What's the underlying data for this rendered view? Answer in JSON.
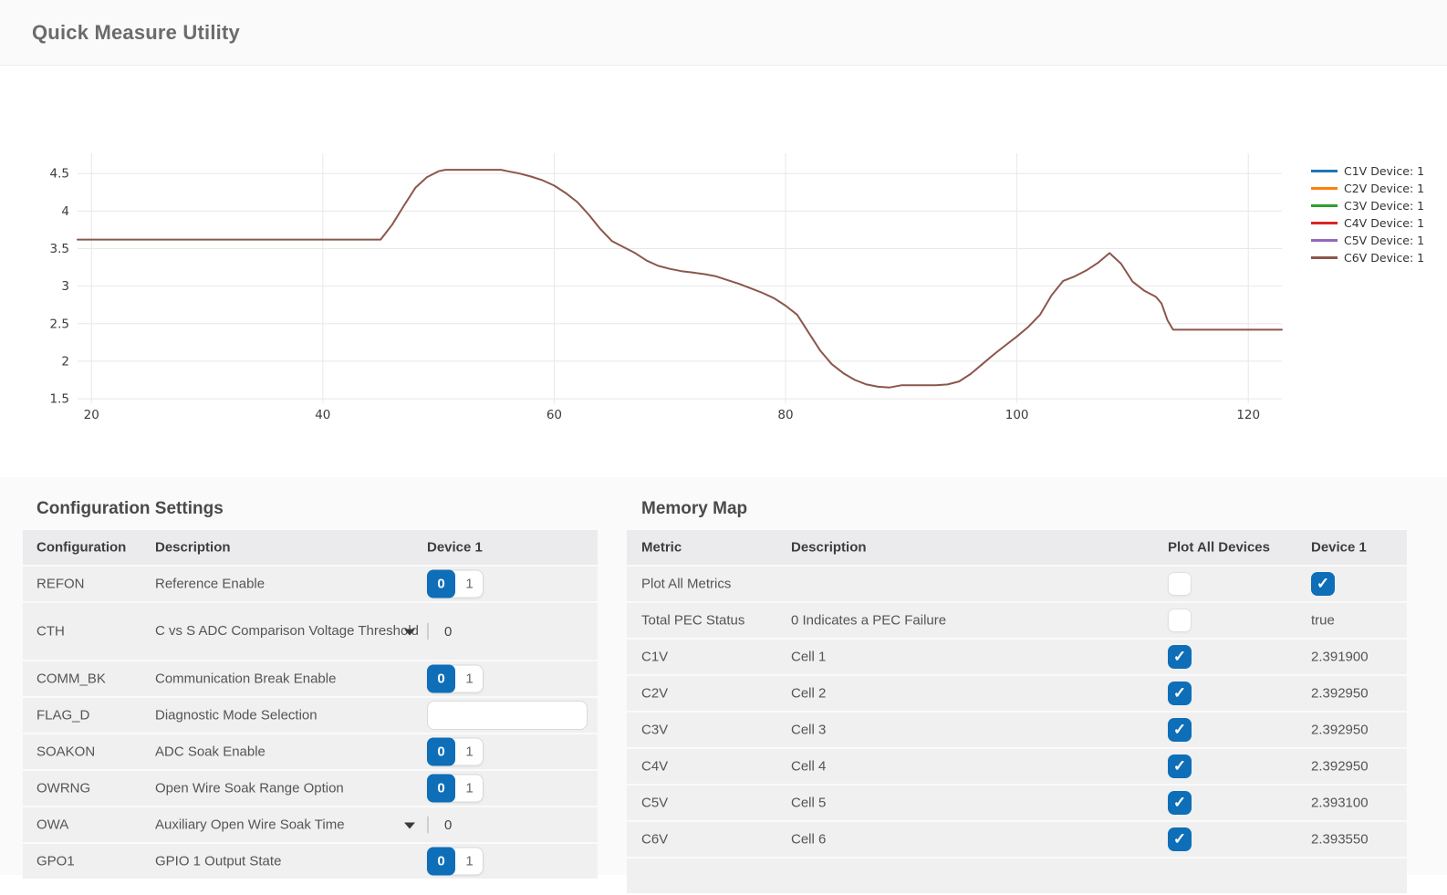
{
  "header": {
    "title": "Quick Measure Utility"
  },
  "chart_data": {
    "type": "line",
    "title": "",
    "xlabel": "",
    "ylabel": "",
    "xlim": [
      18.8,
      122.9
    ],
    "ylim": [
      1.44,
      4.77
    ],
    "x_ticks": [
      20,
      40,
      60,
      80,
      100,
      120
    ],
    "y_ticks": [
      1.5,
      2,
      2.5,
      3,
      3.5,
      4,
      4.5
    ],
    "grid": true,
    "legend_position": "right",
    "series": [
      {
        "name": "C1V Device: 1",
        "color": "#1f77b4"
      },
      {
        "name": "C2V Device: 1",
        "color": "#ff7f0e"
      },
      {
        "name": "C3V Device: 1",
        "color": "#2ca02c"
      },
      {
        "name": "C4V Device: 1",
        "color": "#d62728"
      },
      {
        "name": "C5V Device: 1",
        "color": "#9467bd"
      },
      {
        "name": "C6V Device: 1",
        "color": "#8c564b"
      }
    ],
    "overlap_note": "All six cell-voltage traces overlap almost exactly; the visible line is the last-drawn C6V series",
    "visible_line": {
      "color": "#8c564b",
      "points": [
        [
          18.8,
          3.62
        ],
        [
          45,
          3.62
        ],
        [
          46,
          3.82
        ],
        [
          47,
          4.07
        ],
        [
          48,
          4.31
        ],
        [
          49,
          4.45
        ],
        [
          50,
          4.53
        ],
        [
          50.6,
          4.55
        ],
        [
          55.4,
          4.55
        ],
        [
          56,
          4.53
        ],
        [
          57,
          4.5
        ],
        [
          58,
          4.46
        ],
        [
          59,
          4.41
        ],
        [
          60,
          4.34
        ],
        [
          61,
          4.24
        ],
        [
          62,
          4.12
        ],
        [
          63,
          3.95
        ],
        [
          64,
          3.76
        ],
        [
          65,
          3.6
        ],
        [
          66,
          3.52
        ],
        [
          67,
          3.44
        ],
        [
          68,
          3.34
        ],
        [
          69,
          3.27
        ],
        [
          70,
          3.23
        ],
        [
          71,
          3.2
        ],
        [
          72,
          3.18
        ],
        [
          73,
          3.16
        ],
        [
          74,
          3.13
        ],
        [
          75,
          3.08
        ],
        [
          76,
          3.03
        ],
        [
          77,
          2.97
        ],
        [
          78,
          2.91
        ],
        [
          79,
          2.84
        ],
        [
          80,
          2.74
        ],
        [
          81,
          2.62
        ],
        [
          82,
          2.38
        ],
        [
          83,
          2.14
        ],
        [
          84,
          1.96
        ],
        [
          85,
          1.84
        ],
        [
          86,
          1.75
        ],
        [
          87,
          1.69
        ],
        [
          88,
          1.66
        ],
        [
          89,
          1.65
        ],
        [
          90,
          1.68
        ],
        [
          93,
          1.68
        ],
        [
          94,
          1.69
        ],
        [
          95,
          1.73
        ],
        [
          96,
          1.83
        ],
        [
          97,
          1.96
        ],
        [
          98,
          2.09
        ],
        [
          99,
          2.21
        ],
        [
          100,
          2.33
        ],
        [
          101,
          2.46
        ],
        [
          102,
          2.62
        ],
        [
          103,
          2.88
        ],
        [
          104,
          3.07
        ],
        [
          105,
          3.13
        ],
        [
          106,
          3.21
        ],
        [
          107,
          3.31
        ],
        [
          108,
          3.44
        ],
        [
          109,
          3.3
        ],
        [
          110,
          3.06
        ],
        [
          111,
          2.94
        ],
        [
          112,
          2.86
        ],
        [
          112.5,
          2.77
        ],
        [
          113,
          2.55
        ],
        [
          113.5,
          2.42
        ],
        [
          122.9,
          2.42
        ]
      ]
    }
  },
  "config_panel": {
    "title": "Configuration Settings",
    "columns": [
      "Configuration",
      "Description",
      "Device 1"
    ],
    "rows": [
      {
        "name": "REFON",
        "description": "Reference Enable",
        "control": "toggle",
        "value": "0",
        "options": [
          "0",
          "1"
        ]
      },
      {
        "name": "CTH",
        "description": "C vs S ADC Comparison Voltage Threshold",
        "control": "dropdown",
        "value": "0"
      },
      {
        "name": "COMM_BK",
        "description": "Communication Break Enable",
        "control": "toggle",
        "value": "0",
        "options": [
          "0",
          "1"
        ]
      },
      {
        "name": "FLAG_D",
        "description": "Diagnostic Mode Selection",
        "control": "input",
        "value": "",
        "placeholder": ""
      },
      {
        "name": "SOAKON",
        "description": "ADC Soak Enable",
        "control": "toggle",
        "value": "0",
        "options": [
          "0",
          "1"
        ]
      },
      {
        "name": "OWRNG",
        "description": "Open Wire Soak Range Option",
        "control": "toggle",
        "value": "0",
        "options": [
          "0",
          "1"
        ]
      },
      {
        "name": "OWA",
        "description": "Auxiliary Open Wire Soak Time",
        "control": "dropdown",
        "value": "0"
      },
      {
        "name": "GPO1",
        "description": "GPIO 1 Output State",
        "control": "toggle",
        "value": "0",
        "options": [
          "0",
          "1"
        ]
      }
    ]
  },
  "memory_panel": {
    "title": "Memory Map",
    "columns": [
      "Metric",
      "Description",
      "Plot All Devices",
      "Device 1"
    ],
    "rows": [
      {
        "metric": "Plot All Metrics",
        "description": "",
        "plot_all_checked": false,
        "device1_checked": true,
        "device1_value": ""
      },
      {
        "metric": "Total PEC Status",
        "description": "0 Indicates a PEC Failure",
        "plot_all_checked": false,
        "device1_value": "true"
      },
      {
        "metric": "C1V",
        "description": "Cell 1",
        "plot_all_checked": true,
        "device1_value": "2.391900"
      },
      {
        "metric": "C2V",
        "description": "Cell 2",
        "plot_all_checked": true,
        "device1_value": "2.392950"
      },
      {
        "metric": "C3V",
        "description": "Cell 3",
        "plot_all_checked": true,
        "device1_value": "2.392950"
      },
      {
        "metric": "C4V",
        "description": "Cell 4",
        "plot_all_checked": true,
        "device1_value": "2.392950"
      },
      {
        "metric": "C5V",
        "description": "Cell 5",
        "plot_all_checked": true,
        "device1_value": "2.393100"
      },
      {
        "metric": "C6V",
        "description": "Cell 6",
        "plot_all_checked": true,
        "device1_value": "2.393550"
      }
    ]
  },
  "ui_colors": {
    "accent_blue": "#0e6eb8",
    "line_brown": "#8c564b",
    "row_gray": "#f0f0f1"
  }
}
